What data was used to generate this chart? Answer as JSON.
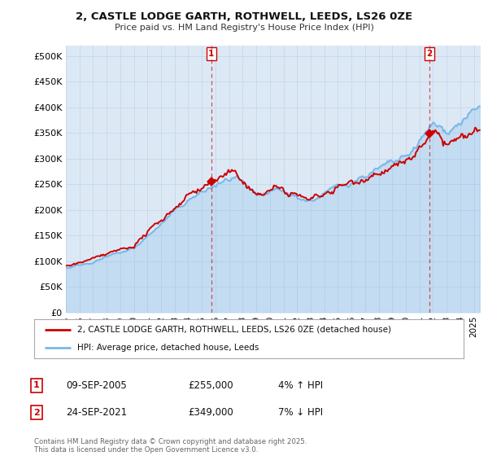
{
  "title": "2, CASTLE LODGE GARTH, ROTHWELL, LEEDS, LS26 0ZE",
  "subtitle": "Price paid vs. HM Land Registry's House Price Index (HPI)",
  "ylim": [
    0,
    520000
  ],
  "yticks": [
    0,
    50000,
    100000,
    150000,
    200000,
    250000,
    300000,
    350000,
    400000,
    450000,
    500000
  ],
  "ytick_labels": [
    "£0",
    "£50K",
    "£100K",
    "£150K",
    "£200K",
    "£250K",
    "£300K",
    "£350K",
    "£400K",
    "£450K",
    "£500K"
  ],
  "xlim_start": 1995.0,
  "xlim_end": 2025.5,
  "hpi_color": "#7ab8e8",
  "price_color": "#cc0000",
  "marker_color": "#cc0000",
  "bg_chart": "#dce9f5",
  "purchase1_x": 2005.69,
  "purchase1_y": 255000,
  "purchase1_label": "1",
  "purchase2_x": 2021.73,
  "purchase2_y": 349000,
  "purchase2_label": "2",
  "legend_line1": "2, CASTLE LODGE GARTH, ROTHWELL, LEEDS, LS26 0ZE (detached house)",
  "legend_line2": "HPI: Average price, detached house, Leeds",
  "annotation1_date": "09-SEP-2005",
  "annotation1_price": "£255,000",
  "annotation1_hpi": "4% ↑ HPI",
  "annotation2_date": "24-SEP-2021",
  "annotation2_price": "£349,000",
  "annotation2_hpi": "7% ↓ HPI",
  "footer": "Contains HM Land Registry data © Crown copyright and database right 2025.\nThis data is licensed under the Open Government Licence v3.0.",
  "background_color": "#ffffff",
  "grid_color": "#c5d8ec"
}
